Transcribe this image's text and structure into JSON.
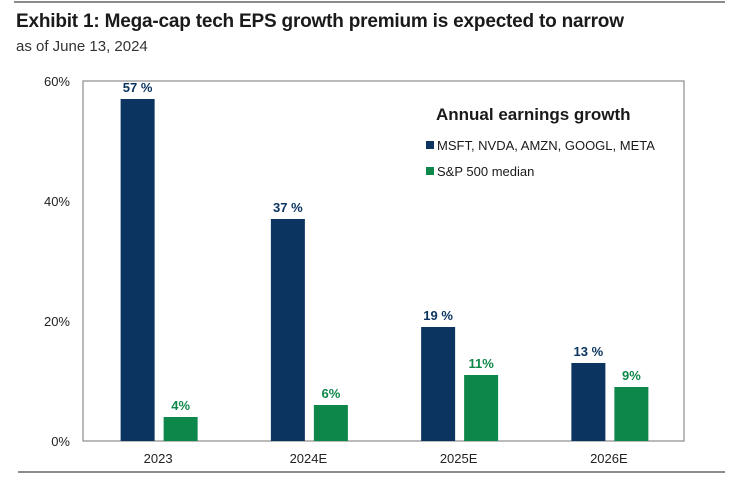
{
  "header": {
    "title": "Exhibit 1: Mega-cap tech EPS growth premium is expected to narrow",
    "subtitle": "as of June 13, 2024"
  },
  "colors": {
    "mega_cap": "#0b3560",
    "sp500": "#0e874a",
    "axis": "#8c8c8c"
  },
  "chart_data": {
    "type": "bar",
    "title": "Exhibit 1: Mega-cap tech EPS growth premium is expected to narrow",
    "subtitle": "as of June 13, 2024",
    "categories": [
      "2023",
      "2024E",
      "2025E",
      "2026E"
    ],
    "series": [
      {
        "name": "MSFT, NVDA, AMZN, GOOGL, META",
        "values": [
          57,
          37,
          19,
          13
        ],
        "labels": [
          "57 %",
          "37 %",
          "19 %",
          "13 %"
        ],
        "color": "#0b3560"
      },
      {
        "name": "S&P 500 median",
        "values": [
          4,
          6,
          11,
          9
        ],
        "labels": [
          "4%",
          "6%",
          "11%",
          "9%"
        ],
        "color": "#0e874a"
      }
    ],
    "legend_title": "Annual earnings growth",
    "legend_position": "top-right",
    "xlabel": "",
    "ylabel": "",
    "ylim": [
      0,
      60
    ],
    "yticks": [
      0,
      20,
      40,
      60
    ],
    "ytick_labels": [
      "0%",
      "20%",
      "40%",
      "60%"
    ],
    "grid": false
  }
}
